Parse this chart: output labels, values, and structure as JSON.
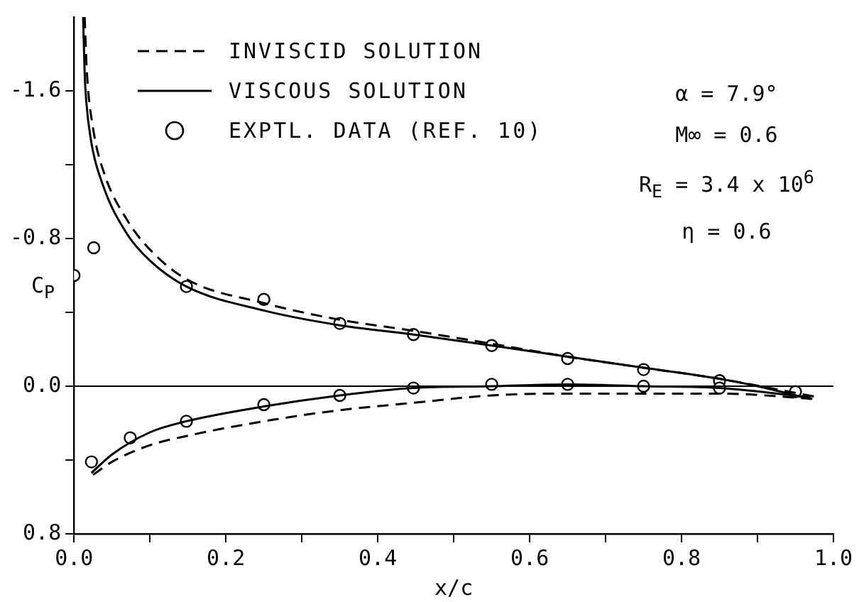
{
  "chart_data": {
    "type": "line",
    "xlabel": "x/c",
    "ylabel": "C$_{P}$",
    "xlim": [
      0,
      1.0
    ],
    "xticks": [
      {
        "value": 0,
        "label": "0.0"
      },
      {
        "value": 0.1,
        "label": null
      },
      0.2,
      {
        "value": 0.3,
        "label": null
      },
      0.4,
      {
        "value": 0.5,
        "label": null
      },
      0.6,
      {
        "value": 0.7,
        "label": null
      },
      0.8,
      {
        "value": 0.9,
        "label": null
      },
      {
        "value": 1,
        "label": "1.0"
      }
    ],
    "ylim": [
      0.8,
      -2.0
    ],
    "yticks": [
      -1.6,
      {
        "value": -1.2,
        "label": null
      },
      -0.8,
      {
        "value": -0.4,
        "label": null
      },
      {
        "value": 0,
        "label": "0.0"
      },
      {
        "value": 0.4,
        "label": null
      },
      0.8
    ],
    "grid": false,
    "legend": "top left",
    "series": [
      {
        "name": "INVISCID SOLUTION",
        "type": "line",
        "line_style": "dashed",
        "color": "#000000",
        "x": [
          0.014,
          0.017,
          0.025,
          0.04,
          0.07,
          0.1,
          0.148,
          0.25,
          0.35,
          0.447,
          0.55,
          0.65,
          0.75,
          0.85,
          0.98
        ],
        "values": [
          -2.0,
          -1.7,
          -1.4,
          -1.15,
          -0.9,
          -0.74,
          -0.58,
          -0.45,
          -0.36,
          -0.3,
          -0.23,
          -0.16,
          -0.1,
          -0.04,
          0.06
        ]
      },
      {
        "type": "line",
        "line_style": "dashed",
        "color": "#000000",
        "x": [
          0.025,
          0.05,
          0.1,
          0.148,
          0.25,
          0.35,
          0.447,
          0.55,
          0.65,
          0.75,
          0.85,
          0.98
        ],
        "values": [
          0.48,
          0.41,
          0.32,
          0.27,
          0.19,
          0.13,
          0.09,
          0.05,
          0.04,
          0.04,
          0.04,
          0.07
        ]
      },
      {
        "name": "VISCOUS SOLUTION",
        "type": "line",
        "line_style": "solid",
        "color": "#000000",
        "x": [
          0.012,
          0.014,
          0.016,
          0.022,
          0.038,
          0.069,
          0.1,
          0.148,
          0.25,
          0.35,
          0.447,
          0.55,
          0.65,
          0.75,
          0.85,
          0.9,
          0.97
        ],
        "values": [
          -2.0,
          -1.7,
          -1.55,
          -1.34,
          -1.09,
          -0.83,
          -0.68,
          -0.54,
          -0.41,
          -0.33,
          -0.28,
          -0.22,
          -0.16,
          -0.1,
          -0.04,
          0.0,
          0.07
        ]
      },
      {
        "type": "line",
        "line_style": "solid",
        "color": "#000000",
        "x": [
          0.023,
          0.05,
          0.1,
          0.148,
          0.25,
          0.35,
          0.447,
          0.55,
          0.65,
          0.75,
          0.85,
          0.97
        ],
        "values": [
          0.47,
          0.37,
          0.25,
          0.19,
          0.11,
          0.05,
          0.01,
          0.0,
          -0.01,
          0.0,
          0.01,
          0.06
        ]
      },
      {
        "name": "EXPTL. DATA (REF. 10)",
        "type": "scatter",
        "marker": "circle",
        "color": "#000000",
        "x": [
          0,
          0.026,
          0.148,
          0.25,
          0.35,
          0.447,
          0.55,
          0.65,
          0.75,
          0.85,
          0.95,
          0.023,
          0.074,
          0.148,
          0.25,
          0.35,
          0.447,
          0.55,
          0.65,
          0.75,
          0.85
        ],
        "values": [
          -0.6,
          -0.75,
          -0.54,
          -0.47,
          -0.34,
          -0.28,
          -0.22,
          -0.15,
          -0.09,
          -0.03,
          0.03,
          0.41,
          0.28,
          0.19,
          0.1,
          0.05,
          0.01,
          -0.01,
          -0.01,
          0.0,
          0.01
        ]
      }
    ],
    "ref_lines": [
      {
        "axis": "y",
        "value": 0,
        "color": "#000000"
      }
    ],
    "annotations": [
      "α = 7.9°",
      "M∞ = 0.6",
      "R$_{E}$ = 3.4 x 10$^{6}$",
      "η = 0.6"
    ]
  }
}
